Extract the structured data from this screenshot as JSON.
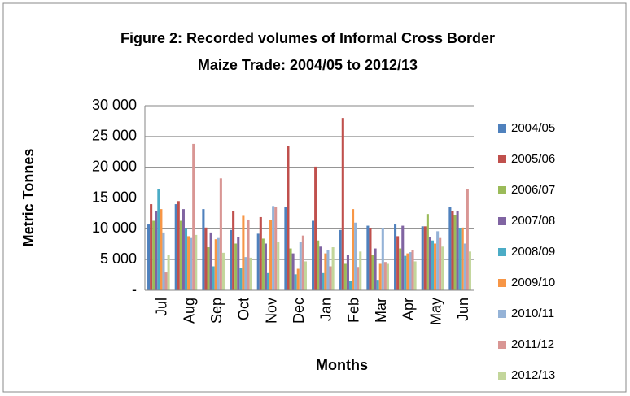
{
  "chart_data": {
    "type": "bar",
    "title": [
      "Figure 2: Recorded volumes of Informal Cross Border",
      "Maize Trade: 2004/05 to 2012/13"
    ],
    "y_label": "Metric Tonnes",
    "x_label": "Months",
    "categories": [
      "Jul",
      "Aug",
      "Sep",
      "Oct",
      "Nov",
      "Dec",
      "Jan",
      "Feb",
      "Mar",
      "Apr",
      "May",
      "Jun"
    ],
    "series": [
      {
        "name": "2004/05",
        "color": "#4F81BD",
        "values": [
          10700,
          14000,
          13200,
          9800,
          9200,
          13500,
          11300,
          9800,
          10500,
          10700,
          10400,
          13500
        ]
      },
      {
        "name": "2005/06",
        "color": "#C0504D",
        "values": [
          14000,
          14500,
          10200,
          12900,
          11900,
          23500,
          20100,
          28000,
          10100,
          8800,
          10400,
          12900
        ]
      },
      {
        "name": "2006/07",
        "color": "#9BBB59",
        "values": [
          11300,
          11300,
          7000,
          7600,
          8400,
          6800,
          8100,
          4300,
          5700,
          6800,
          12400,
          12200
        ]
      },
      {
        "name": "2007/08",
        "color": "#8064A2",
        "values": [
          12900,
          13200,
          9400,
          8600,
          7600,
          6000,
          7100,
          5700,
          6800,
          10500,
          8700,
          12900
        ]
      },
      {
        "name": "2008/09",
        "color": "#4BACC6",
        "values": [
          16400,
          10000,
          3900,
          3600,
          2800,
          2600,
          2800,
          1500,
          1700,
          5600,
          8100,
          10100
        ]
      },
      {
        "name": "2009/10",
        "color": "#F79646",
        "values": [
          13200,
          8800,
          8300,
          12100,
          11500,
          3500,
          6000,
          13200,
          4300,
          6000,
          7600,
          10200
        ]
      },
      {
        "name": "2010/11",
        "color": "#95B3D7",
        "values": [
          9400,
          8500,
          8500,
          5400,
          13700,
          7800,
          6500,
          11000,
          10100,
          6200,
          9600,
          7600
        ]
      },
      {
        "name": "2011/12",
        "color": "#D99694",
        "values": [
          2900,
          23800,
          18200,
          11500,
          13500,
          8900,
          3900,
          3800,
          4600,
          6500,
          8500,
          16400
        ]
      },
      {
        "name": "2012/13",
        "color": "#C3D69B",
        "values": [
          5800,
          9000,
          6100,
          5300,
          7800,
          4700,
          7000,
          6300,
          4300,
          4700,
          7100,
          6300
        ]
      }
    ],
    "ylim": [
      0,
      30000
    ],
    "yticks": [
      {
        "value": 0,
        "label": "-"
      },
      {
        "value": 5000,
        "label": "5 000"
      },
      {
        "value": 10000,
        "label": "10 000"
      },
      {
        "value": 15000,
        "label": "15 000"
      },
      {
        "value": 20000,
        "label": "20 000"
      },
      {
        "value": 25000,
        "label": "25 000"
      },
      {
        "value": 30000,
        "label": "30 000"
      }
    ],
    "grid": true,
    "legend": "right"
  }
}
